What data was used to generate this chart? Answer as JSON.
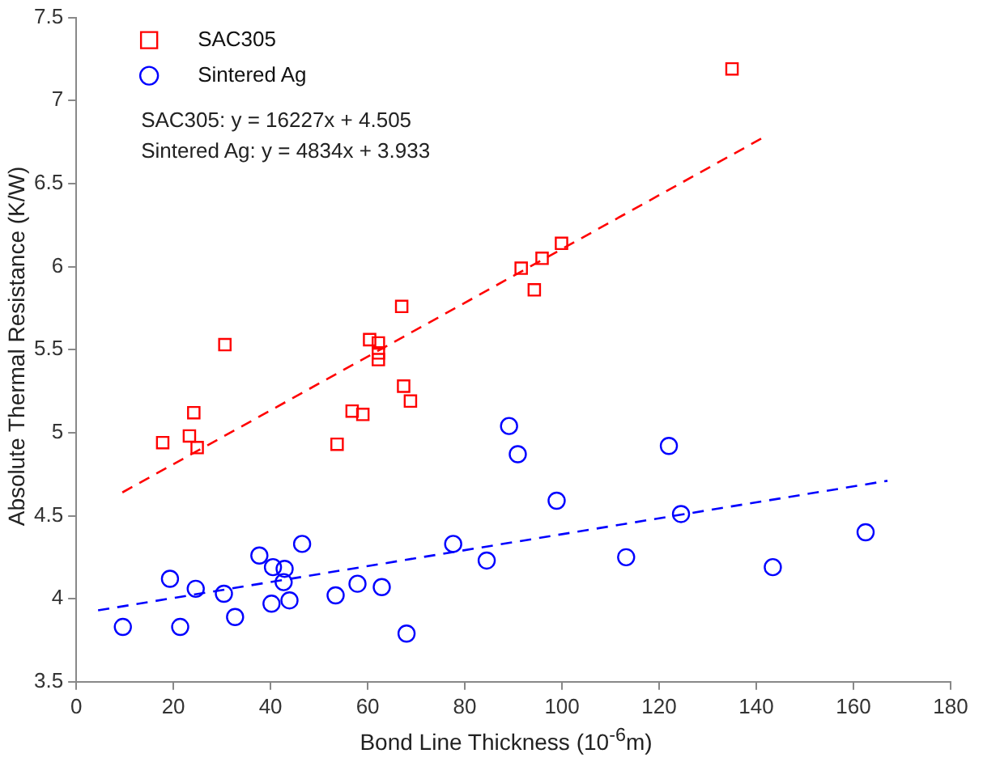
{
  "chart_data": {
    "type": "scatter",
    "xlabel": "Bond Line Thickness (10$^{-6}$m)",
    "ylabel": "Absolute Thermal Resistance (K/W)",
    "xlim": [
      0,
      180
    ],
    "xticks": [
      0,
      20,
      40,
      60,
      80,
      100,
      120,
      140,
      160,
      180
    ],
    "ylim": [
      3.5,
      7.5
    ],
    "yticks": [
      3.5,
      4,
      4.5,
      5,
      5.5,
      6,
      6.5,
      7,
      7.5
    ],
    "grid": false,
    "legend": "top left",
    "annotations": [
      "SAC305: y = 16227x + 4.505",
      "Sintered Ag: y = 4834x + 3.933"
    ],
    "series": [
      {
        "name": "SAC305",
        "type": "scatter",
        "marker": "square",
        "color": "#ff0000",
        "x": [
          17.8,
          23.3,
          24.2,
          24.9,
          30.6,
          53.7,
          56.8,
          59.0,
          60.4,
          62.2,
          62.2,
          62.2,
          67.0,
          67.4,
          68.8,
          91.6,
          94.3,
          95.9,
          99.9,
          135.0
        ],
        "values": [
          4.94,
          4.98,
          5.12,
          4.91,
          5.53,
          4.93,
          5.13,
          5.11,
          5.56,
          5.54,
          5.48,
          5.44,
          5.76,
          5.28,
          5.19,
          5.99,
          5.86,
          6.05,
          6.14,
          7.19
        ]
      },
      {
        "name": "Sintered Ag",
        "type": "scatter",
        "marker": "circle",
        "color": "#0000ff",
        "x": [
          9.6,
          19.3,
          21.4,
          24.6,
          30.4,
          32.7,
          37.7,
          40.2,
          40.5,
          42.9,
          42.7,
          43.9,
          46.5,
          53.4,
          57.9,
          62.9,
          68.0,
          77.6,
          84.5,
          89.1,
          90.9,
          98.9,
          113.2,
          122.0,
          124.5,
          143.4,
          162.5
        ],
        "values": [
          3.83,
          4.12,
          3.83,
          4.06,
          4.03,
          3.89,
          4.26,
          3.97,
          4.19,
          4.18,
          4.1,
          3.99,
          4.33,
          4.02,
          4.09,
          4.07,
          3.79,
          4.33,
          4.23,
          5.04,
          4.87,
          4.59,
          4.25,
          4.92,
          4.51,
          4.19,
          4.4
        ]
      },
      {
        "type": "line",
        "line_style": "dashed",
        "marker": "none",
        "color": "#ff0000",
        "x": [
          9.5,
          141.6
        ],
        "values": [
          4.64,
          6.78
        ]
      },
      {
        "type": "line",
        "line_style": "dashed",
        "marker": "none",
        "color": "#0000ff",
        "x": [
          4.5,
          167.0
        ],
        "values": [
          3.93,
          4.71
        ]
      }
    ]
  }
}
